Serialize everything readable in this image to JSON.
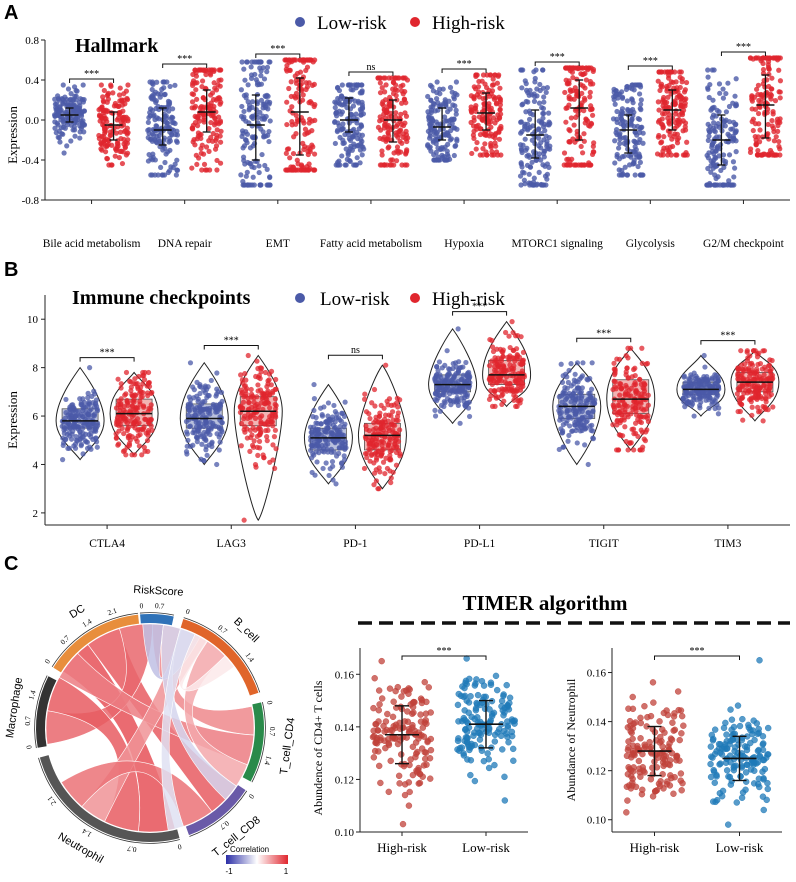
{
  "panels": {
    "a": {
      "letter": "A"
    },
    "b": {
      "letter": "B"
    },
    "c": {
      "letter": "C"
    }
  },
  "legend": {
    "low_label": "Low-risk",
    "high_label": "High-risk",
    "low_color": "#4b5aa8",
    "high_color": "#e0262e"
  },
  "chart_data": [
    {
      "id": "hallmark",
      "type": "scatter",
      "title": "Hallmark",
      "ylabel": "Expression",
      "ylim": [
        -0.8,
        0.8
      ],
      "yticks": [
        "-0.8",
        "-0.4",
        "0.0",
        "0.4",
        "0.8"
      ],
      "categories": [
        "Bile acid metabolism",
        "DNA repair",
        "EMT",
        "Fatty acid metabolism",
        "Hypoxia",
        "MTORC1 signaling",
        "Glycolysis",
        "G2/M checkpoint"
      ],
      "significance": [
        "***",
        "***",
        "***",
        "ns",
        "***",
        "***",
        "***",
        "***"
      ],
      "series": [
        {
          "name": "Low-risk",
          "median": [
            0.05,
            -0.1,
            -0.05,
            0.0,
            -0.07,
            -0.15,
            -0.1,
            -0.2
          ],
          "q1": [
            -0.02,
            -0.25,
            -0.4,
            -0.12,
            -0.2,
            -0.38,
            -0.33,
            -0.45
          ],
          "q3": [
            0.12,
            0.12,
            0.25,
            0.22,
            0.12,
            0.1,
            0.05,
            0.05
          ],
          "min": [
            -0.33,
            -0.55,
            -0.65,
            -0.45,
            -0.4,
            -0.65,
            -0.55,
            -0.65
          ],
          "max": [
            0.35,
            0.38,
            0.58,
            0.35,
            0.38,
            0.5,
            0.35,
            0.5
          ]
        },
        {
          "name": "High-risk",
          "median": [
            -0.05,
            0.08,
            0.08,
            0.0,
            0.07,
            0.12,
            0.1,
            0.15
          ],
          "q1": [
            -0.2,
            -0.12,
            -0.35,
            -0.22,
            -0.1,
            -0.2,
            -0.1,
            -0.18
          ],
          "q3": [
            0.08,
            0.3,
            0.42,
            0.2,
            0.27,
            0.4,
            0.3,
            0.45
          ],
          "min": [
            -0.45,
            -0.5,
            -0.5,
            -0.45,
            -0.35,
            -0.45,
            -0.35,
            -0.35
          ],
          "max": [
            0.35,
            0.5,
            0.6,
            0.42,
            0.45,
            0.52,
            0.48,
            0.62
          ]
        }
      ]
    },
    {
      "id": "immune",
      "type": "scatter",
      "title": "Immune checkpoints",
      "ylabel": "Expression",
      "ylim": [
        1.5,
        11
      ],
      "yticks": [
        "2",
        "4",
        "6",
        "8",
        "10"
      ],
      "categories": [
        "CTLA4",
        "LAG3",
        "PD-1",
        "PD-L1",
        "TIGIT",
        "TIM3"
      ],
      "significance": [
        "***",
        "***",
        "ns",
        "***",
        "***",
        "***"
      ],
      "series": [
        {
          "name": "Low-risk",
          "median": [
            5.8,
            5.9,
            5.1,
            7.3,
            6.4,
            7.1
          ],
          "q1": [
            5.5,
            5.5,
            4.6,
            7.0,
            5.9,
            6.9
          ],
          "q3": [
            6.3,
            6.5,
            5.5,
            7.7,
            6.9,
            7.4
          ],
          "min": [
            4.2,
            4.0,
            3.2,
            5.7,
            4.0,
            6.0
          ],
          "max": [
            8.0,
            8.2,
            7.3,
            9.6,
            8.2,
            8.5
          ]
        },
        {
          "name": "High-risk",
          "median": [
            6.1,
            6.2,
            5.2,
            7.7,
            6.7,
            7.4
          ],
          "q1": [
            5.6,
            5.6,
            4.6,
            7.3,
            6.1,
            7.0
          ],
          "q3": [
            6.7,
            6.8,
            5.7,
            8.3,
            7.5,
            7.8
          ],
          "min": [
            4.4,
            1.7,
            3.0,
            6.4,
            4.6,
            5.8
          ],
          "max": [
            7.8,
            8.5,
            8.1,
            9.9,
            8.8,
            8.7
          ]
        }
      ]
    },
    {
      "id": "chord",
      "type": "chord",
      "sectors": [
        "RiskScore",
        "B_cell",
        "T_cell_CD4",
        "T_cell_CD8",
        "Neutrophil",
        "Macrophage",
        "DC"
      ],
      "sector_colors": [
        "#2f72b8",
        "#e0652a",
        "#2a8a4a",
        "#6a5aa8",
        "#555555",
        "#333333",
        "#e88e3c"
      ],
      "legend_title": "Correlation",
      "legend_min": "-1",
      "legend_max": "1",
      "tick_labels": [
        {
          "sector": 0,
          "labels": [
            "0",
            "0.7"
          ]
        },
        {
          "sector": 1,
          "labels": [
            "0",
            "0.7",
            "1.4"
          ]
        },
        {
          "sector": 2,
          "labels": [
            "0",
            "0.7",
            "1.4"
          ]
        },
        {
          "sector": 3,
          "labels": [
            "0",
            "0.7"
          ]
        },
        {
          "sector": 4,
          "labels": [
            "0",
            "0.7",
            "1.4",
            "2.1"
          ]
        },
        {
          "sector": 5,
          "labels": [
            "0",
            "0.7",
            "1.4"
          ]
        },
        {
          "sector": 6,
          "labels": [
            "0",
            "0.7",
            "1.4",
            "2.1"
          ]
        }
      ],
      "links": [
        {
          "from": 6,
          "to": 4,
          "r": 0.8
        },
        {
          "from": 6,
          "to": 3,
          "r": 0.75
        },
        {
          "from": 6,
          "to": 5,
          "r": 0.7
        },
        {
          "from": 6,
          "to": 2,
          "r": 0.55
        },
        {
          "from": 5,
          "to": 4,
          "r": 0.75
        },
        {
          "from": 5,
          "to": 2,
          "r": 0.6
        },
        {
          "from": 4,
          "to": 1,
          "r": 0.5
        },
        {
          "from": 4,
          "to": 3,
          "r": 0.65
        },
        {
          "from": 1,
          "to": 2,
          "r": 0.4
        },
        {
          "from": 0,
          "to": 6,
          "r": -0.3
        },
        {
          "from": 0,
          "to": 2,
          "r": -0.2
        },
        {
          "from": 0,
          "to": 3,
          "r": -0.15
        },
        {
          "from": 0,
          "to": 1,
          "r": 0.1
        }
      ]
    },
    {
      "id": "timer_cd4",
      "type": "scatter",
      "ylabel": "Abundence of CD4+ T cells",
      "ylim": [
        0.1,
        0.17
      ],
      "yticks": [
        "0.10",
        "0.12",
        "0.14",
        "0.16"
      ],
      "categories": [
        "High-risk",
        "Low-risk"
      ],
      "significance": "***",
      "colors": [
        "#c0413a",
        "#1f7ab8"
      ],
      "mean": [
        0.137,
        0.141
      ],
      "sd_low": [
        0.126,
        0.132
      ],
      "sd_high": [
        0.148,
        0.15
      ],
      "min": [
        0.103,
        0.112
      ],
      "max": [
        0.165,
        0.166
      ]
    },
    {
      "id": "timer_neutrophil",
      "type": "scatter",
      "ylabel": "Abundance of Neutrophil",
      "ylim": [
        0.095,
        0.17
      ],
      "yticks": [
        "0.10",
        "0.12",
        "0.14",
        "0.16"
      ],
      "categories": [
        "High-risk",
        "Low-risk"
      ],
      "significance": "***",
      "colors": [
        "#c0413a",
        "#1f7ab8"
      ],
      "mean": [
        0.128,
        0.125
      ],
      "sd_low": [
        0.118,
        0.116
      ],
      "sd_high": [
        0.138,
        0.134
      ],
      "min": [
        0.103,
        0.098
      ],
      "max": [
        0.156,
        0.165
      ]
    }
  ],
  "timer": {
    "title": "TIMER  algorithm"
  }
}
